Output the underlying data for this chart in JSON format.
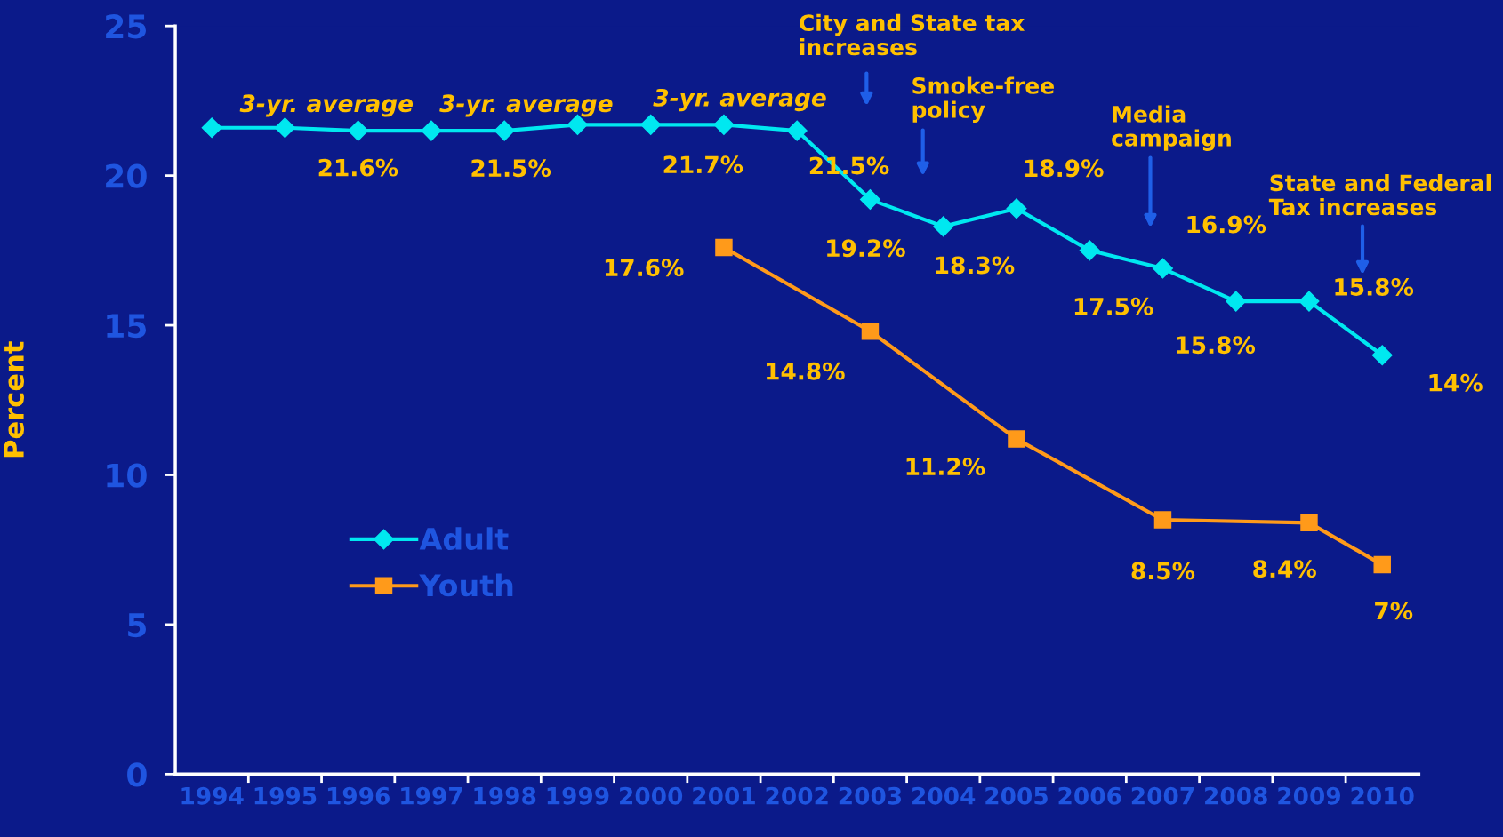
{
  "chart_data": {
    "type": "line",
    "ylabel": "Percent",
    "categories": [
      "1994",
      "1995",
      "1996",
      "1997",
      "1998",
      "1999",
      "2000",
      "2001",
      "2002",
      "2003",
      "2004",
      "2005",
      "2006",
      "2007",
      "2008",
      "2009",
      "2010"
    ],
    "series": [
      {
        "name": "Adult",
        "color": "#00e8f0",
        "marker": "diamond",
        "values": [
          21.6,
          21.6,
          21.5,
          21.5,
          21.5,
          21.7,
          21.7,
          21.7,
          21.5,
          19.2,
          18.3,
          18.9,
          17.5,
          16.9,
          15.8,
          15.8,
          14
        ],
        "value_labels": [
          null,
          "21.6%",
          null,
          null,
          "21.5%",
          null,
          null,
          "21.7%",
          "21.5%",
          "19.2%",
          "18.3%",
          "18.9%",
          "17.5%",
          "16.9%",
          "15.8%",
          "15.8%",
          "14%"
        ]
      },
      {
        "name": "Youth",
        "color": "#ff9a1a",
        "marker": "square",
        "values": [
          null,
          null,
          null,
          null,
          null,
          null,
          null,
          17.6,
          null,
          14.8,
          null,
          11.2,
          null,
          8.5,
          null,
          8.4,
          7
        ],
        "value_labels": [
          null,
          null,
          null,
          null,
          null,
          null,
          null,
          "17.6%",
          null,
          "14.8%",
          null,
          "11.2%",
          null,
          "8.5%",
          null,
          "8.4%",
          "7%"
        ]
      }
    ],
    "ylim": [
      0,
      25
    ],
    "yticks": [
      0,
      5,
      10,
      15,
      20,
      25
    ],
    "grid": false,
    "legend": "left",
    "line_style": "solid",
    "annotations": [
      "3-yr. average",
      "3-yr. average",
      "3-yr. average",
      "City and State tax\nincreases",
      "Smoke-free\npolicy",
      "Media\ncampaign",
      "State and Federal\nTax increases"
    ]
  }
}
